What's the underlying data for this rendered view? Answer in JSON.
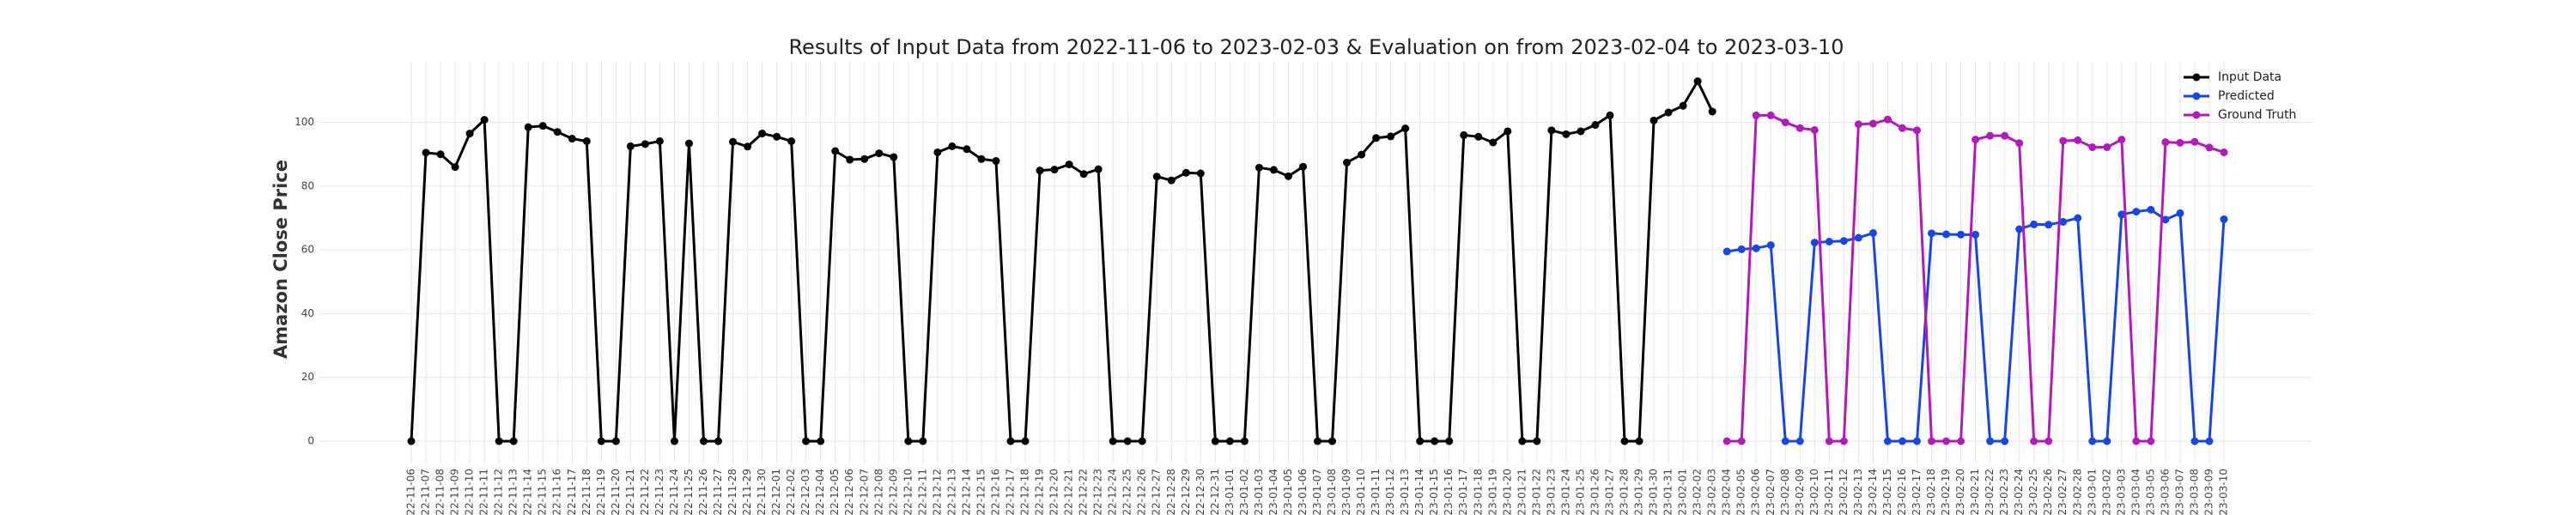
{
  "chart_data": {
    "type": "line",
    "title": "Results of Input Data from 2022-11-06 to 2023-02-03 & Evaluation on from 2023-02-04 to 2023-03-10",
    "ylabel": "Amazon Close Price",
    "categories": [
      "2022-11-06",
      "2022-11-07",
      "2022-11-08",
      "2022-11-09",
      "2022-11-10",
      "2022-11-11",
      "2022-11-12",
      "2022-11-13",
      "2022-11-14",
      "2022-11-15",
      "2022-11-16",
      "2022-11-17",
      "2022-11-18",
      "2022-11-19",
      "2022-11-20",
      "2022-11-21",
      "2022-11-22",
      "2022-11-23",
      "2022-11-24",
      "2022-11-25",
      "2022-11-26",
      "2022-11-27",
      "2022-11-28",
      "2022-11-29",
      "2022-11-30",
      "2022-12-01",
      "2022-12-02",
      "2022-12-03",
      "2022-12-04",
      "2022-12-05",
      "2022-12-06",
      "2022-12-07",
      "2022-12-08",
      "2022-12-09",
      "2022-12-10",
      "2022-12-11",
      "2022-12-12",
      "2022-12-13",
      "2022-12-14",
      "2022-12-15",
      "2022-12-16",
      "2022-12-17",
      "2022-12-18",
      "2022-12-19",
      "2022-12-20",
      "2022-12-21",
      "2022-12-22",
      "2022-12-23",
      "2022-12-24",
      "2022-12-25",
      "2022-12-26",
      "2022-12-27",
      "2022-12-28",
      "2022-12-29",
      "2022-12-30",
      "2022-12-31",
      "2023-01-01",
      "2023-01-02",
      "2023-01-03",
      "2023-01-04",
      "2023-01-05",
      "2023-01-06",
      "2023-01-07",
      "2023-01-08",
      "2023-01-09",
      "2023-01-10",
      "2023-01-11",
      "2023-01-12",
      "2023-01-13",
      "2023-01-14",
      "2023-01-15",
      "2023-01-16",
      "2023-01-17",
      "2023-01-18",
      "2023-01-19",
      "2023-01-20",
      "2023-01-21",
      "2023-01-22",
      "2023-01-23",
      "2023-01-24",
      "2023-01-25",
      "2023-01-26",
      "2023-01-27",
      "2023-01-28",
      "2023-01-29",
      "2023-01-30",
      "2023-01-31",
      "2023-02-01",
      "2023-02-02",
      "2023-02-03",
      "2023-02-04",
      "2023-02-05",
      "2023-02-06",
      "2023-02-07",
      "2023-02-08",
      "2023-02-09",
      "2023-02-10",
      "2023-02-11",
      "2023-02-12",
      "2023-02-13",
      "2023-02-14",
      "2023-02-15",
      "2023-02-16",
      "2023-02-17",
      "2023-02-18",
      "2023-02-19",
      "2023-02-20",
      "2023-02-21",
      "2023-02-22",
      "2023-02-23",
      "2023-02-24",
      "2023-02-25",
      "2023-02-26",
      "2023-02-27",
      "2023-02-28",
      "2023-03-01",
      "2023-03-02",
      "2023-03-03",
      "2023-03-04",
      "2023-03-05",
      "2023-03-06",
      "2023-03-07",
      "2023-03-08",
      "2023-03-09",
      "2023-03-10"
    ],
    "series": [
      {
        "name": "Input Data",
        "color": "#000000",
        "values": [
          0,
          90.5,
          90,
          86,
          96.5,
          100.8,
          0,
          0,
          98.5,
          98.9,
          97,
          94.9,
          94.1,
          0,
          0,
          92.5,
          93.2,
          94.1,
          0,
          93.4,
          0,
          0,
          93.9,
          92.4,
          96.5,
          95.5,
          94.1,
          0,
          0,
          91,
          88.3,
          88.5,
          90.3,
          89.1,
          0,
          0,
          90.6,
          92.5,
          91.6,
          88.5,
          87.9,
          0,
          0,
          84.9,
          85.2,
          86.8,
          83.8,
          85.3,
          0,
          0,
          0,
          83,
          81.8,
          84.2,
          84,
          0,
          0,
          0,
          85.8,
          85.1,
          83.1,
          86.1,
          0,
          0,
          87.4,
          89.9,
          95.1,
          95.6,
          98.1,
          0,
          0,
          0,
          96,
          95.5,
          93.7,
          97.2,
          0,
          0,
          97.5,
          96.3,
          97.2,
          99.2,
          102.2,
          0,
          0,
          100.6,
          103.1,
          105.2,
          112.9,
          103.4,
          null,
          null,
          null,
          null,
          null,
          null,
          null,
          null,
          null,
          null,
          null,
          null,
          null,
          null,
          null,
          null,
          null,
          null,
          null,
          null,
          null,
          null,
          null,
          null,
          null,
          null,
          null,
          null,
          null,
          null,
          null,
          null,
          null,
          null,
          null
        ]
      },
      {
        "name": "Predicted",
        "color": "#1a46e0",
        "values": [
          null,
          null,
          null,
          null,
          null,
          null,
          null,
          null,
          null,
          null,
          null,
          null,
          null,
          null,
          null,
          null,
          null,
          null,
          null,
          null,
          null,
          null,
          null,
          null,
          null,
          null,
          null,
          null,
          null,
          null,
          null,
          null,
          null,
          null,
          null,
          null,
          null,
          null,
          null,
          null,
          null,
          null,
          null,
          null,
          null,
          null,
          null,
          null,
          null,
          null,
          null,
          null,
          null,
          null,
          null,
          null,
          null,
          null,
          null,
          null,
          null,
          null,
          null,
          null,
          null,
          null,
          null,
          null,
          null,
          null,
          null,
          null,
          null,
          null,
          null,
          null,
          null,
          null,
          null,
          null,
          null,
          null,
          null,
          null,
          null,
          null,
          null,
          null,
          null,
          null,
          59.5,
          60.2,
          60.5,
          61.5,
          0,
          0,
          62.3,
          62.6,
          62.8,
          63.8,
          65.3,
          0,
          0,
          0,
          65.2,
          64.9,
          64.8,
          64.8,
          0,
          0,
          66.5,
          68,
          67.9,
          68.8,
          70,
          0,
          0,
          71.1,
          72,
          72.6,
          69.5,
          71.5,
          0,
          0,
          69.6
        ]
      },
      {
        "name": "Ground Truth",
        "color": "#b01cb8",
        "values": [
          null,
          null,
          null,
          null,
          null,
          null,
          null,
          null,
          null,
          null,
          null,
          null,
          null,
          null,
          null,
          null,
          null,
          null,
          null,
          null,
          null,
          null,
          null,
          null,
          null,
          null,
          null,
          null,
          null,
          null,
          null,
          null,
          null,
          null,
          null,
          null,
          null,
          null,
          null,
          null,
          null,
          null,
          null,
          null,
          null,
          null,
          null,
          null,
          null,
          null,
          null,
          null,
          null,
          null,
          null,
          null,
          null,
          null,
          null,
          null,
          null,
          null,
          null,
          null,
          null,
          null,
          null,
          null,
          null,
          null,
          null,
          null,
          null,
          null,
          null,
          null,
          null,
          null,
          null,
          null,
          null,
          null,
          null,
          null,
          null,
          null,
          null,
          null,
          null,
          null,
          0,
          0,
          102.2,
          102.2,
          100,
          98.2,
          97.6,
          0,
          0,
          99.4,
          99.6,
          100.9,
          98.2,
          97.5,
          0,
          0,
          0,
          94.6,
          95.8,
          95.8,
          93.5,
          0,
          0,
          94.2,
          94.4,
          92.2,
          92.2,
          94.6,
          0,
          0,
          93.8,
          93.6,
          93.9,
          92.1,
          90.6
        ]
      }
    ],
    "ylim": [
      -7,
      119
    ],
    "yticks": [
      0,
      20,
      40,
      60,
      80,
      100
    ],
    "grid": true,
    "legend": "upper right"
  }
}
